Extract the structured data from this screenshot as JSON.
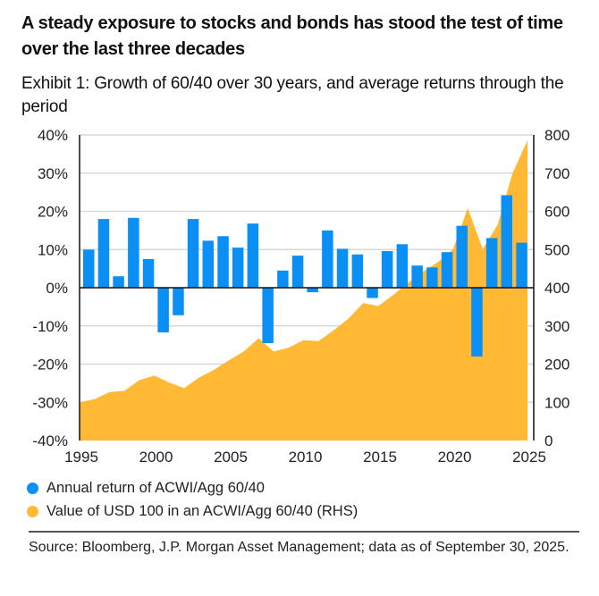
{
  "header": {
    "title": "A steady exposure to stocks and bonds has stood the test of time over the last three decades",
    "subtitle": "Exhibit 1: Growth of 60/40 over 30 years, and average returns through the period"
  },
  "colors": {
    "bar": "#0A8FF5",
    "area": "#FFB935",
    "grid": "#D9D9D9",
    "axis": "#111111"
  },
  "chart_data": {
    "type": "bar",
    "title": "Growth of 60/40 over 30 years, and average returns through the period",
    "xlabel": "",
    "ylabel": "",
    "grid": true,
    "legend_position": "bottom-left",
    "x_ticks": [
      "1995",
      "2000",
      "2005",
      "2010",
      "2015",
      "2020",
      "2025"
    ],
    "left_axis": {
      "ylim": [
        -40,
        40
      ],
      "ticks": [
        "40%",
        "30%",
        "20%",
        "10%",
        "0%",
        "-10%",
        "-20%",
        "-30%",
        "-40%"
      ],
      "tick_values": [
        40,
        30,
        20,
        10,
        0,
        -10,
        -20,
        -30,
        -40
      ]
    },
    "right_axis": {
      "ylim": [
        0,
        800
      ],
      "ticks": [
        "800",
        "700",
        "600",
        "500",
        "400",
        "300",
        "200",
        "100",
        "0"
      ],
      "tick_values": [
        800,
        700,
        600,
        500,
        400,
        300,
        200,
        100,
        0
      ]
    },
    "xlim": [
      1995,
      2025
    ],
    "series": [
      {
        "name": "Annual return of ACWI/Agg 60/40",
        "type": "bar",
        "axis": "left",
        "x": [
          1996,
          1997,
          1998,
          1999,
          2000,
          2001,
          2002,
          2003,
          2004,
          2005,
          2006,
          2007,
          2008,
          2009,
          2010,
          2011,
          2012,
          2013,
          2014,
          2015,
          2016,
          2017,
          2018,
          2019,
          2020,
          2021,
          2022,
          2023,
          2024,
          2025
        ],
        "values": [
          10.0,
          18.0,
          3.0,
          18.3,
          7.5,
          -11.7,
          -7.2,
          18.0,
          12.3,
          13.5,
          10.5,
          16.8,
          -14.5,
          4.5,
          8.4,
          -1.2,
          15.0,
          10.2,
          8.7,
          -2.7,
          9.6,
          11.4,
          5.8,
          5.3,
          9.3,
          16.2,
          -18.0,
          13.0,
          24.2,
          11.8
        ]
      },
      {
        "name": "Value of USD 100 in an ACWI/Agg 60/40 (RHS)",
        "type": "area",
        "axis": "right",
        "x": [
          1995,
          1996,
          1997,
          1998,
          1999,
          2000,
          2001,
          2002,
          2003,
          2004,
          2005,
          2006,
          2007,
          2008,
          2009,
          2010,
          2011,
          2012,
          2013,
          2014,
          2015,
          2016,
          2017,
          2018,
          2019,
          2020,
          2021,
          2022,
          2023,
          2024,
          2025
        ],
        "values": [
          100,
          108,
          127,
          130,
          158,
          170,
          152,
          137,
          165,
          185,
          210,
          233,
          268,
          233,
          243,
          263,
          260,
          288,
          319,
          360,
          352,
          381,
          413,
          442,
          467,
          500,
          609,
          501,
          565,
          700,
          786
        ]
      }
    ]
  },
  "legend": [
    {
      "label": "Annual return of ACWI/Agg 60/40",
      "color": "#0A8FF5"
    },
    {
      "label": "Value of USD 100 in an ACWI/Agg 60/40 (RHS)",
      "color": "#FFB935"
    }
  ],
  "footer": {
    "source": "Source: Bloomberg, J.P. Morgan Asset Management; data as of September 30, 2025."
  }
}
